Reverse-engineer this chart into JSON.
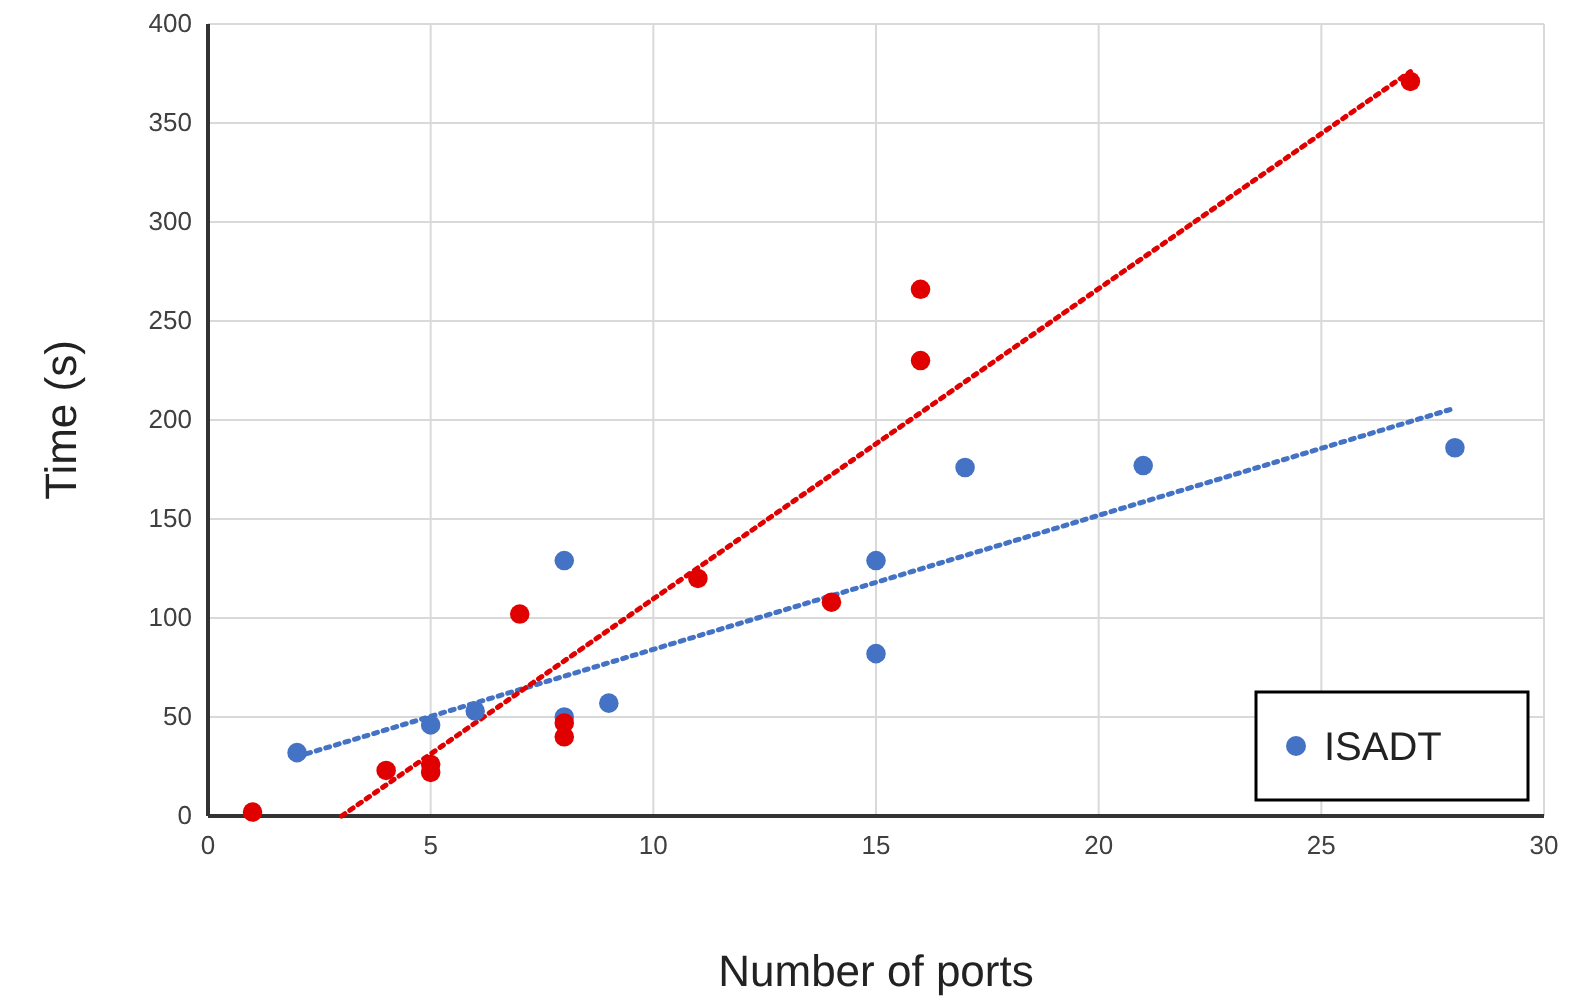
{
  "chart_data": {
    "type": "scatter",
    "xlabel": "Number of ports",
    "ylabel": "Time (s)",
    "xlim": [
      0,
      30
    ],
    "xticks": [
      0,
      5,
      10,
      15,
      20,
      25,
      30
    ],
    "ylim": [
      0,
      400
    ],
    "yticks": [
      0,
      50,
      100,
      150,
      200,
      250,
      300,
      350,
      400
    ],
    "grid": true,
    "legend": "bottom right",
    "series": [
      {
        "name": "ISADT",
        "color": "#4472c4",
        "marker": "circle",
        "x": [
          2,
          5,
          6,
          8,
          8,
          9,
          15,
          15,
          17,
          21,
          28
        ],
        "values": [
          32,
          46,
          53,
          129,
          50,
          57,
          129,
          82,
          176,
          177,
          186
        ]
      },
      {
        "color": "#e00000",
        "marker": "circle",
        "x": [
          1,
          4,
          5,
          5,
          7,
          8,
          8,
          11,
          14,
          16,
          16,
          27
        ],
        "values": [
          2,
          23,
          26,
          22,
          102,
          47,
          40,
          120,
          108,
          266,
          230,
          371
        ]
      },
      {
        "type": "line",
        "color": "#4472c4",
        "line_style": "dotted",
        "x": [
          2,
          28
        ],
        "values": [
          30,
          206
        ]
      },
      {
        "type": "line",
        "color": "#e00000",
        "line_style": "dotted",
        "x": [
          3,
          27
        ],
        "values": [
          0,
          376
        ]
      }
    ]
  }
}
